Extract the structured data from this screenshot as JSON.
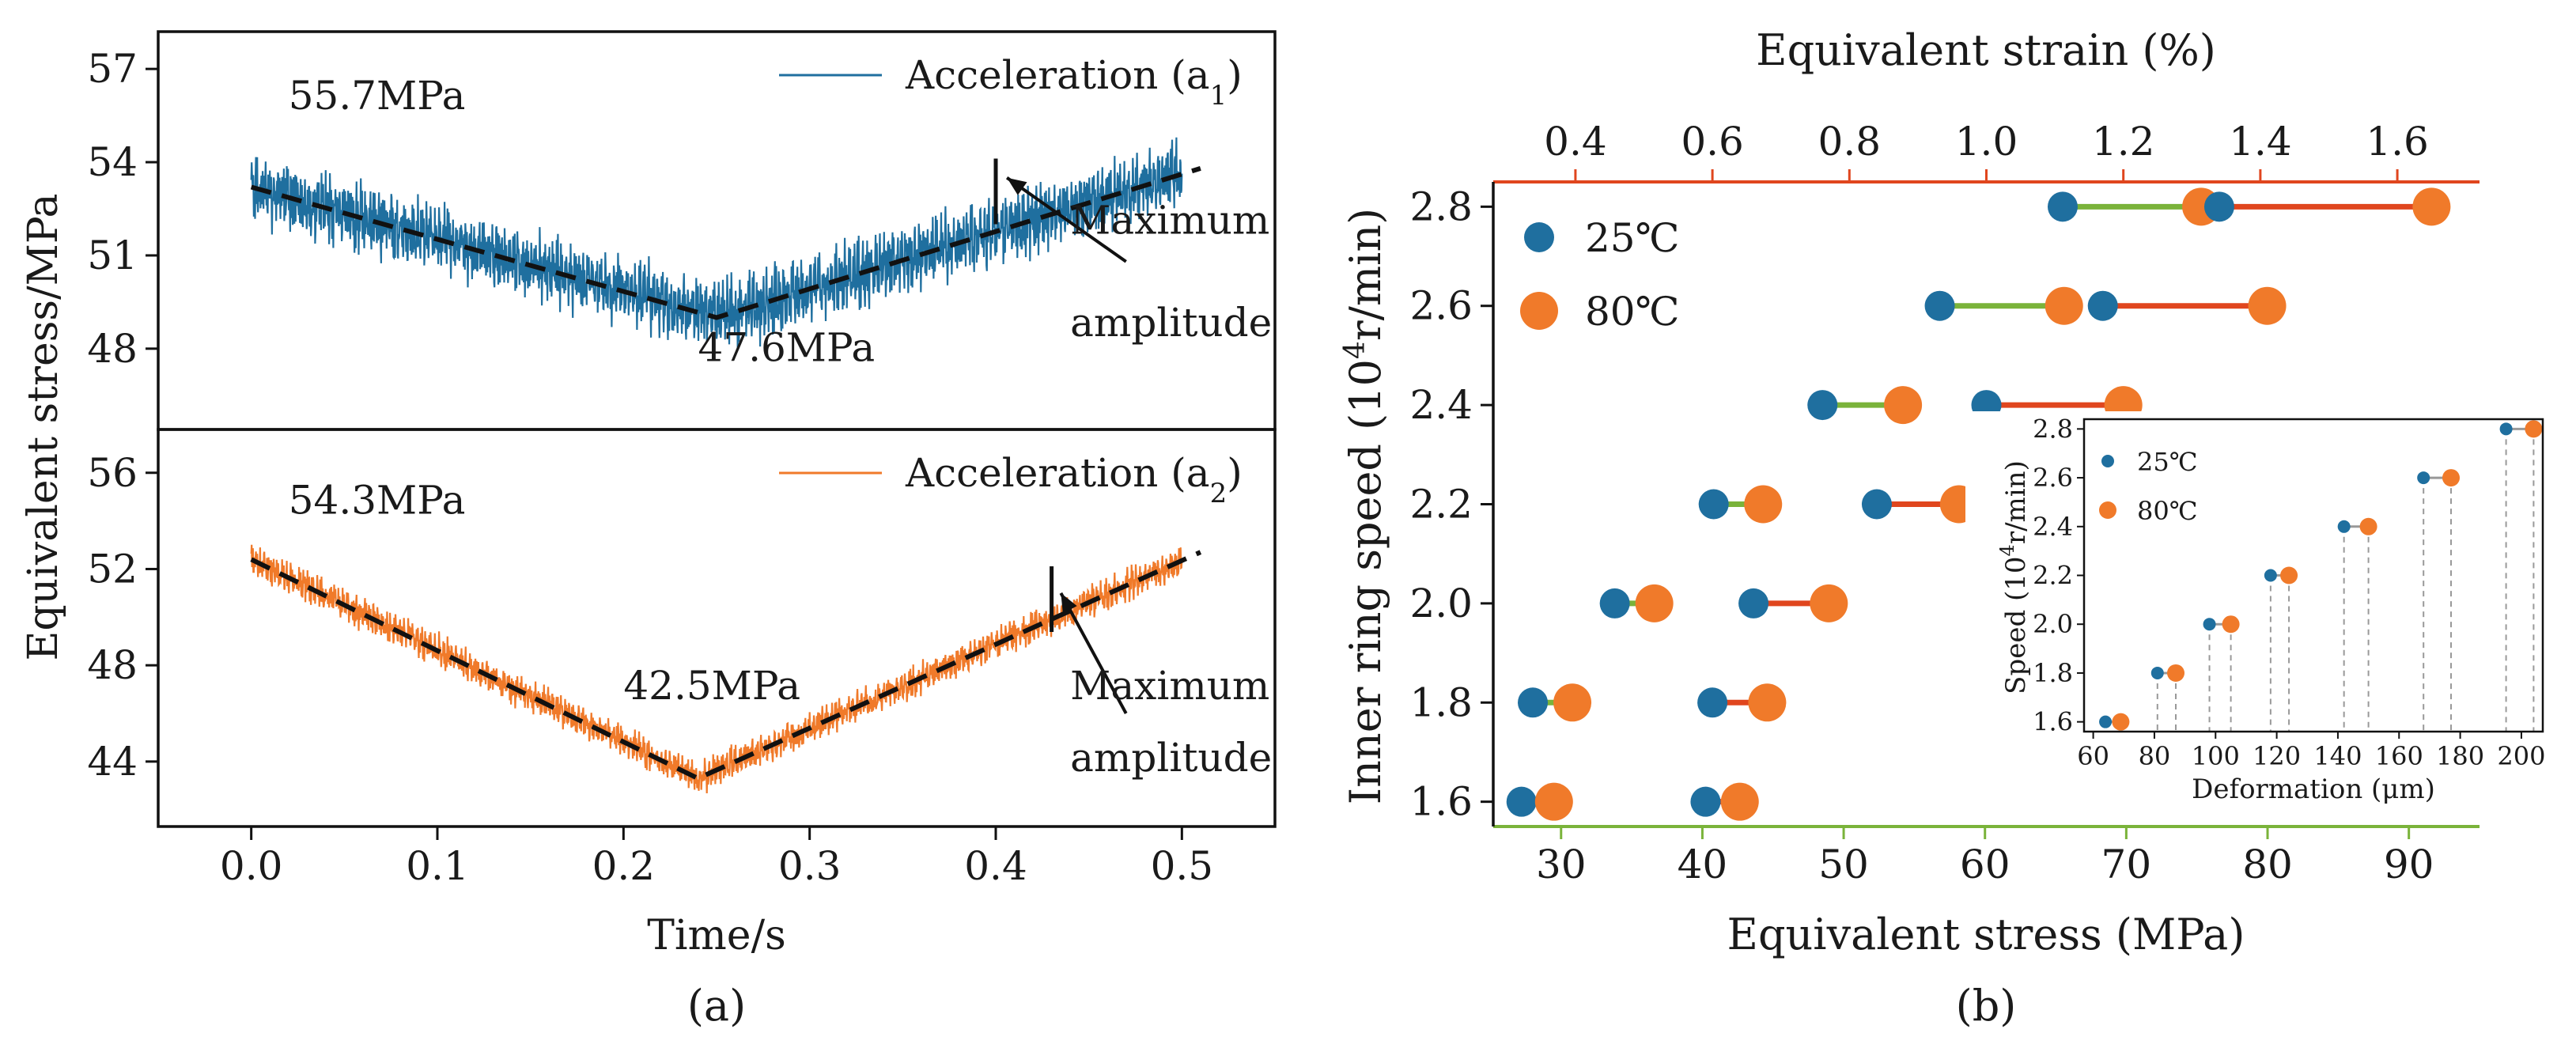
{
  "chart_data": [
    {
      "type": "line",
      "panel_label": "(a)",
      "xlabel": "Time/s",
      "ylabel": "Equivalent stress/MPa",
      "xlim": [
        -0.05,
        0.55
      ],
      "x_ticks": [
        0.0,
        0.1,
        0.2,
        0.3,
        0.4,
        0.5
      ],
      "x_tick_labels": [
        "0.0",
        "0.1",
        "0.2",
        "0.3",
        "0.4",
        "0.5"
      ],
      "subplots": [
        {
          "name": "top",
          "ylim": [
            45.4,
            58.2
          ],
          "y_ticks": [
            48,
            51,
            54,
            57
          ],
          "y_tick_labels": [
            "48",
            "51",
            "54",
            "57"
          ],
          "series": [
            {
              "name": "Acceleration (a",
              "subscript": "1",
              "legend_suffix": ")",
              "color": "#1f6f9f",
              "trend_x": [
                0.0,
                0.25,
                0.51
              ],
              "trend_y": [
                53.2,
                49.0,
                53.8
              ],
              "noise_amplitude": 1.0
            }
          ],
          "annotations": [
            {
              "text": "55.7MPa",
              "x": 0.02,
              "y": 55.7
            },
            {
              "text": "47.6MPa",
              "x": 0.24,
              "y": 47.6
            },
            {
              "text": "Maximum",
              "x": 0.44,
              "y": 51.7
            },
            {
              "text": "amplitude",
              "x": 0.44,
              "y": 48.4
            }
          ],
          "marker_x": 0.4,
          "arrow_from": [
            0.47,
            50.8
          ],
          "arrow_to": [
            0.406,
            53.5
          ]
        },
        {
          "name": "bottom",
          "ylim": [
            41.3,
            57.8
          ],
          "y_ticks": [
            44,
            48,
            52,
            56
          ],
          "y_tick_labels": [
            "44",
            "48",
            "52",
            "56"
          ],
          "series": [
            {
              "name": "Acceleration (a",
              "subscript": "2",
              "legend_suffix": ")",
              "color": "#f07a2a",
              "trend_x": [
                0.0,
                0.24,
                0.51
              ],
              "trend_y": [
                52.4,
                43.3,
                52.7
              ],
              "noise_amplitude": 0.6
            }
          ],
          "annotations": [
            {
              "text": "54.3MPa",
              "x": 0.02,
              "y": 54.3
            },
            {
              "text": "42.5MPa",
              "x": 0.2,
              "y": 46.6
            },
            {
              "text": "Maximum",
              "x": 0.44,
              "y": 46.6
            },
            {
              "text": "amplitude",
              "x": 0.44,
              "y": 43.6
            }
          ],
          "marker_x": 0.43,
          "arrow_from": [
            0.47,
            46.0
          ],
          "arrow_to": [
            0.435,
            51.0
          ]
        }
      ]
    },
    {
      "type": "scatter",
      "subtype": "dumbbell",
      "panel_label": "(b)",
      "title": "",
      "xlabel": "Equivalent stress (MPa)",
      "x_top_label": "Equivalent strain (%)",
      "ylabel": "Inner ring speed (10",
      "ylabel_sup": "4",
      "ylabel_suffix": "r/min)",
      "xlim": [
        25.2,
        95
      ],
      "x_ticks": [
        30,
        40,
        50,
        60,
        70,
        80,
        90
      ],
      "x_tick_labels": [
        "30",
        "40",
        "50",
        "60",
        "70",
        "80",
        "90"
      ],
      "x_top_lim": [
        0.28,
        1.72
      ],
      "x_top_ticks": [
        0.4,
        0.6,
        0.8,
        1.0,
        1.2,
        1.4,
        1.6
      ],
      "x_top_tick_labels": [
        "0.4",
        "0.6",
        "0.8",
        "1.0",
        "1.2",
        "1.4",
        "1.6"
      ],
      "ylim": [
        1.55,
        2.85
      ],
      "y_ticks": [
        1.6,
        1.8,
        2.0,
        2.2,
        2.4,
        2.6,
        2.8
      ],
      "y_tick_labels": [
        "1.6",
        "1.8",
        "2.0",
        "2.2",
        "2.4",
        "2.6",
        "2.8"
      ],
      "legend": [
        {
          "label": "25℃",
          "color": "#1f6f9f"
        },
        {
          "label": "80℃",
          "color": "#f07a2a"
        }
      ],
      "stress_pairs": [
        {
          "speed": 1.6,
          "v25": 27.2,
          "v80": 29.5
        },
        {
          "speed": 1.8,
          "v25": 28.0,
          "v80": 30.8
        },
        {
          "speed": 2.0,
          "v25": 33.8,
          "v80": 36.6
        },
        {
          "speed": 2.2,
          "v25": 40.8,
          "v80": 44.3
        },
        {
          "speed": 2.4,
          "v25": 48.5,
          "v80": 54.2
        },
        {
          "speed": 2.6,
          "v25": 56.8,
          "v80": 65.6
        },
        {
          "speed": 2.8,
          "v25": 65.5,
          "v80": 75.3
        }
      ],
      "strain_pairs": [
        {
          "speed": 1.6,
          "v25": 0.59,
          "v80": 0.64
        },
        {
          "speed": 1.8,
          "v25": 0.6,
          "v80": 0.68
        },
        {
          "speed": 2.0,
          "v25": 0.66,
          "v80": 0.77
        },
        {
          "speed": 2.2,
          "v25": 0.84,
          "v80": 0.96
        },
        {
          "speed": 2.4,
          "v25": 1.0,
          "v80": 1.2
        },
        {
          "speed": 2.6,
          "v25": 1.17,
          "v80": 1.41
        },
        {
          "speed": 2.8,
          "v25": 1.34,
          "v80": 1.65
        }
      ],
      "stress_line_color": "#7ab33a",
      "strain_line_color": "#e0461e",
      "inset": {
        "type": "scatter",
        "xlabel": "Deformation (μm)",
        "ylabel": "Speed (10",
        "ylabel_sup": "4",
        "ylabel_suffix": "r/min)",
        "xlim": [
          57,
          207
        ],
        "x_ticks": [
          60,
          80,
          100,
          120,
          140,
          160,
          180,
          200
        ],
        "x_tick_labels": [
          "60",
          "80",
          "100",
          "120",
          "140",
          "160",
          "180",
          "200"
        ],
        "ylim": [
          1.56,
          2.84
        ],
        "y_ticks": [
          1.6,
          1.8,
          2.0,
          2.2,
          2.4,
          2.6,
          2.8
        ],
        "y_tick_labels": [
          "1.6",
          "1.8",
          "2.0",
          "2.2",
          "2.4",
          "2.6",
          "2.8"
        ],
        "legend": [
          {
            "label": "25℃",
            "color": "#1f6f9f"
          },
          {
            "label": "80℃",
            "color": "#f07a2a"
          }
        ],
        "pairs": [
          {
            "speed": 1.6,
            "d25": 64,
            "d80": 69
          },
          {
            "speed": 1.8,
            "d25": 81,
            "d80": 87
          },
          {
            "speed": 2.0,
            "d25": 98,
            "d80": 105
          },
          {
            "speed": 2.2,
            "d25": 118,
            "d80": 124
          },
          {
            "speed": 2.4,
            "d25": 142,
            "d80": 150
          },
          {
            "speed": 2.6,
            "d25": 168,
            "d80": 177
          },
          {
            "speed": 2.8,
            "d25": 195,
            "d80": 204
          }
        ]
      }
    }
  ]
}
